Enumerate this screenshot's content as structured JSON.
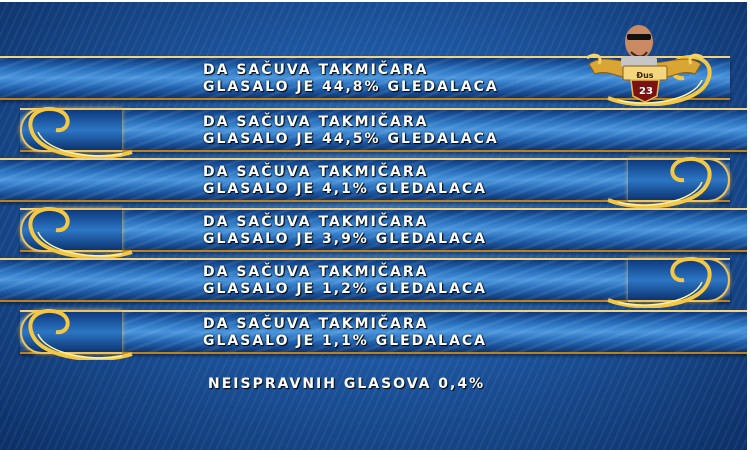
{
  "results": [
    {
      "line1": "DA SAČUVA TAKMIČARA",
      "line2": "GLASALO JE 44,8% GLEDALACA",
      "percent": 44.8
    },
    {
      "line1": "DA SAČUVA TAKMIČARA",
      "line2": "GLASALO JE 44,5% GLEDALACA",
      "percent": 44.5
    },
    {
      "line1": "DA SAČUVA TAKMIČARA",
      "line2": "GLASALO JE 4,1% GLEDALACA",
      "percent": 4.1
    },
    {
      "line1": "DA SAČUVA TAKMIČARA",
      "line2": "GLASALO JE 3,9% GLEDALACA",
      "percent": 3.9
    },
    {
      "line1": "DA SAČUVA TAKMIČARA",
      "line2": "GLASALO JE 1,2% GLEDALACA",
      "percent": 1.2
    },
    {
      "line1": "DA SAČUVA TAKMIČARA",
      "line2": "GLASALO JE 1,1% GLEDALACA",
      "percent": 1.1
    }
  ],
  "footer": "NEISPRAVNIH GLASOVA 0,4%",
  "contestant_badge": {
    "name": "Đus",
    "number": "23"
  },
  "colors": {
    "background": "#1d56a0",
    "gold": "#f0c25a",
    "text": "#ffffff"
  }
}
